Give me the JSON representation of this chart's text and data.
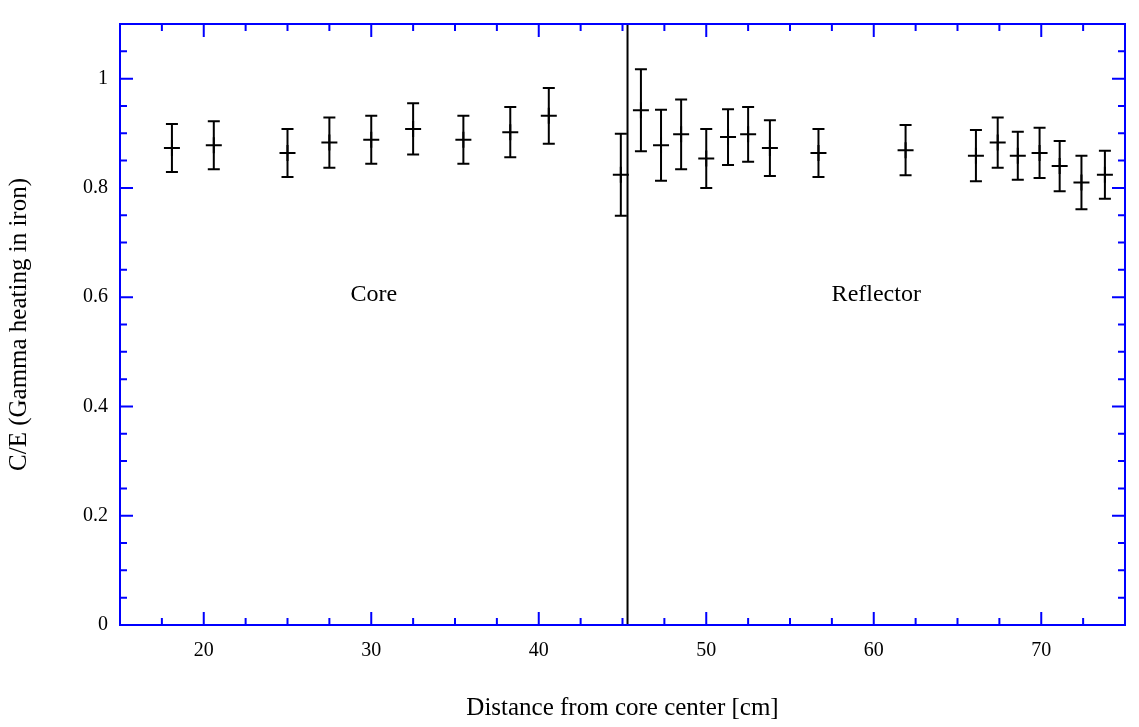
{
  "chart_data": {
    "type": "scatter",
    "xlabel": "Distance from core center [cm]",
    "ylabel": "C/E (Gamma heating in iron)",
    "xlim": [
      15,
      75
    ],
    "xticks": [
      {
        "value": 15,
        "label": null
      },
      {
        "value": 17.5,
        "label": null
      },
      20,
      {
        "value": 22.5,
        "label": null
      },
      {
        "value": 25,
        "label": null
      },
      {
        "value": 27.5,
        "label": null
      },
      30,
      {
        "value": 32.5,
        "label": null
      },
      {
        "value": 35,
        "label": null
      },
      {
        "value": 37.5,
        "label": null
      },
      40,
      {
        "value": 42.5,
        "label": null
      },
      {
        "value": 45,
        "label": null
      },
      {
        "value": 47.5,
        "label": null
      },
      50,
      {
        "value": 52.5,
        "label": null
      },
      {
        "value": 55,
        "label": null
      },
      {
        "value": 57.5,
        "label": null
      },
      60,
      {
        "value": 62.5,
        "label": null
      },
      {
        "value": 65,
        "label": null
      },
      {
        "value": 67.5,
        "label": null
      },
      70,
      {
        "value": 72.5,
        "label": null
      },
      {
        "value": 75,
        "label": null
      }
    ],
    "ylim": [
      0,
      1.1
    ],
    "yticks": [
      0,
      {
        "value": 0.05,
        "label": null
      },
      {
        "value": 0.1,
        "label": null
      },
      {
        "value": 0.15,
        "label": null
      },
      0.2,
      {
        "value": 0.25,
        "label": null
      },
      {
        "value": 0.3,
        "label": null
      },
      {
        "value": 0.35,
        "label": null
      },
      0.4,
      {
        "value": 0.45,
        "label": null
      },
      {
        "value": 0.5,
        "label": null
      },
      {
        "value": 0.55,
        "label": null
      },
      0.6,
      {
        "value": 0.65,
        "label": null
      },
      {
        "value": 0.7,
        "label": null
      },
      {
        "value": 0.75,
        "label": null
      },
      0.8,
      {
        "value": 0.85,
        "label": null
      },
      {
        "value": 0.9,
        "label": null
      },
      {
        "value": 0.95,
        "label": null
      },
      1,
      {
        "value": 1.05,
        "label": null
      },
      {
        "value": 1.1,
        "label": null
      }
    ],
    "grid": false,
    "legend": false,
    "marker": "cross",
    "series": [
      {
        "color": "#000000",
        "x": [
          18.1,
          20.6,
          25.0,
          27.5,
          30.0,
          32.5,
          35.5,
          38.3,
          40.6,
          44.9,
          46.1,
          47.3,
          48.5,
          50.0,
          51.3,
          52.5,
          53.8,
          56.7,
          61.9,
          66.1,
          67.4,
          68.6,
          69.9,
          71.1,
          72.4,
          73.8
        ],
        "values": [
          0.873,
          0.878,
          0.864,
          0.883,
          0.888,
          0.908,
          0.888,
          0.902,
          0.932,
          0.824,
          0.942,
          0.878,
          0.898,
          0.854,
          0.893,
          0.898,
          0.873,
          0.864,
          0.869,
          0.859,
          0.883,
          0.859,
          0.864,
          0.84,
          0.81,
          0.824
        ],
        "errors": [
          0.044,
          0.044,
          0.044,
          0.046,
          0.044,
          0.047,
          0.044,
          0.046,
          0.051,
          0.075,
          0.075,
          0.065,
          0.064,
          0.054,
          0.051,
          0.05,
          0.051,
          0.044,
          0.046,
          0.047,
          0.046,
          0.044,
          0.046,
          0.046,
          0.049,
          0.044
        ]
      }
    ],
    "ref_lines": [
      {
        "axis": "x",
        "value": 45.3,
        "color": "#000000"
      }
    ],
    "annotations": [
      "Core",
      "Reflector"
    ]
  }
}
